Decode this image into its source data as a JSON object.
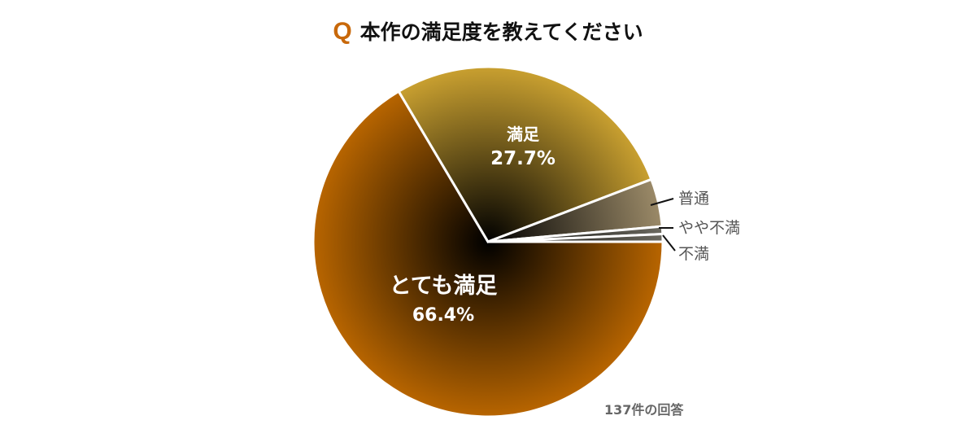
{
  "title": {
    "marker": "Q",
    "text": "本作の満足度を教えてください"
  },
  "footer": "137件の回答",
  "chart_data": {
    "type": "pie",
    "title": "本作の満足度を教えてください",
    "total_responses": 137,
    "slices": [
      {
        "label": "とても満足",
        "value": 66.4,
        "value_label": "66.4%",
        "color": "#b86500"
      },
      {
        "label": "満足",
        "value": 27.7,
        "value_label": "27.7%",
        "color": "#c9a030"
      },
      {
        "label": "普通",
        "value": 4.4,
        "color": "#9b8a68"
      },
      {
        "label": "やや不満",
        "value": 0.7,
        "color": "#6c6a60"
      },
      {
        "label": "不満",
        "value": 0.7,
        "color": "#6c6a60"
      }
    ],
    "start": "3 o'clock, clockwise"
  }
}
